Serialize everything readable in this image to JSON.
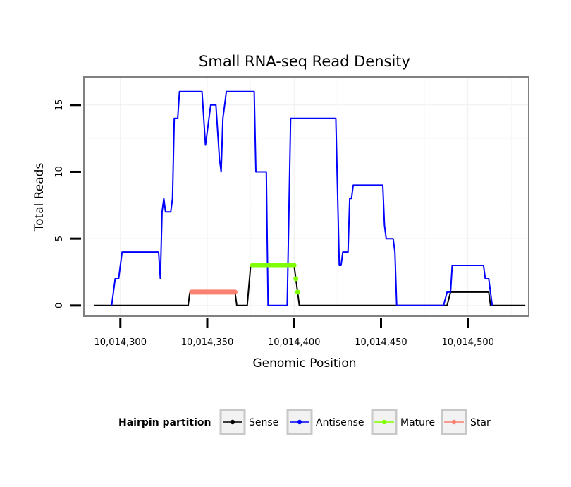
{
  "chart_data": {
    "type": "line",
    "title": "Small RNA-seq Read Density",
    "xlabel": "Genomic Position",
    "ylabel": "Total Reads",
    "xlim": [
      10014279,
      10014535
    ],
    "ylim": [
      -0.8,
      17.1
    ],
    "x_ticks": [
      10014300,
      10014350,
      10014400,
      10014450,
      10014500
    ],
    "x_tick_labels": [
      "10,014,300",
      "10,014,350",
      "10,014,400",
      "10,014,450",
      "10,014,500"
    ],
    "y_ticks": [
      0,
      5,
      10,
      15
    ],
    "y_tick_labels": [
      "0",
      "5",
      "10",
      "15"
    ],
    "grid": true,
    "legend": {
      "title": "Hairpin partition",
      "position": "bottom",
      "entries": [
        {
          "label": "Sense",
          "color": "#000000"
        },
        {
          "label": "Antisense",
          "color": "#0000ff"
        },
        {
          "label": "Mature",
          "color": "#7fff00"
        },
        {
          "label": "Star",
          "color": "#fa8072"
        }
      ]
    },
    "series": [
      {
        "name": "Sense",
        "color": "#000000",
        "points": [
          [
            10014285,
            0
          ],
          [
            10014339,
            0
          ],
          [
            10014340,
            1
          ],
          [
            10014366,
            1
          ],
          [
            10014367,
            0
          ],
          [
            10014373,
            0
          ],
          [
            10014375,
            3
          ],
          [
            10014400,
            3
          ],
          [
            10014401,
            2
          ],
          [
            10014402,
            1
          ],
          [
            10014403,
            0
          ],
          [
            10014488,
            0
          ],
          [
            10014490,
            1
          ],
          [
            10014512,
            1
          ],
          [
            10014513,
            0
          ],
          [
            10014533,
            0
          ]
        ]
      },
      {
        "name": "Antisense",
        "color": "#0000ff",
        "points": [
          [
            10014295,
            0
          ],
          [
            10014297,
            2
          ],
          [
            10014299,
            2
          ],
          [
            10014301,
            4
          ],
          [
            10014322,
            4
          ],
          [
            10014323,
            2
          ],
          [
            10014324,
            7
          ],
          [
            10014325,
            8
          ],
          [
            10014326,
            7
          ],
          [
            10014329,
            7
          ],
          [
            10014330,
            8
          ],
          [
            10014331,
            14
          ],
          [
            10014333,
            14
          ],
          [
            10014334,
            16
          ],
          [
            10014347,
            16
          ],
          [
            10014349,
            12
          ],
          [
            10014350,
            13
          ],
          [
            10014352,
            15
          ],
          [
            10014355,
            15
          ],
          [
            10014357,
            11
          ],
          [
            10014358,
            10
          ],
          [
            10014359,
            14
          ],
          [
            10014360,
            15
          ],
          [
            10014361,
            16
          ],
          [
            10014377,
            16
          ],
          [
            10014378,
            10
          ],
          [
            10014384,
            10
          ],
          [
            10014385,
            0
          ],
          [
            10014396,
            0
          ],
          [
            10014398,
            14
          ],
          [
            10014424,
            14
          ],
          [
            10014426,
            3
          ],
          [
            10014427,
            3
          ],
          [
            10014428,
            4
          ],
          [
            10014431,
            4
          ],
          [
            10014432,
            8
          ],
          [
            10014433,
            8
          ],
          [
            10014434,
            9
          ],
          [
            10014451,
            9
          ],
          [
            10014452,
            6
          ],
          [
            10014453,
            5
          ],
          [
            10014457,
            5
          ],
          [
            10014458,
            4
          ],
          [
            10014459,
            0
          ],
          [
            10014486,
            0
          ],
          [
            10014488,
            1
          ],
          [
            10014490,
            1
          ],
          [
            10014491,
            3
          ],
          [
            10014509,
            3
          ],
          [
            10014510,
            2
          ],
          [
            10014512,
            2
          ],
          [
            10014514,
            0
          ]
        ]
      },
      {
        "name": "Mature",
        "color": "#7fff00",
        "segments": [
          [
            10014376,
            10014400,
            3
          ]
        ],
        "dots": [
          [
            10014401,
            2
          ],
          [
            10014402,
            1
          ]
        ]
      },
      {
        "name": "Star",
        "color": "#fa8072",
        "segments": [
          [
            10014341,
            10014366,
            1
          ]
        ],
        "dots": []
      }
    ]
  }
}
